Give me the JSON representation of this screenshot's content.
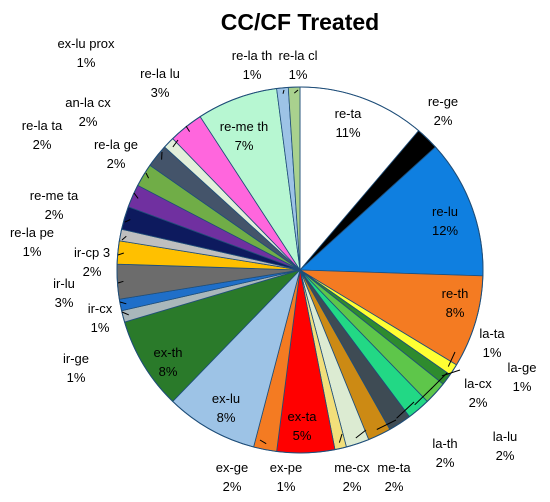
{
  "chart_data": {
    "type": "pie",
    "title": "CC/CF Treated",
    "unit": "%",
    "start_angle_deg": 0,
    "direction": "clockwise",
    "slices": [
      {
        "label": "re-ta",
        "value": 11,
        "color": "#ffffff",
        "text_color": "#000000"
      },
      {
        "label": "re-ge",
        "value": 2,
        "color": "#000000",
        "text_color": "#000000"
      },
      {
        "label": "re-lu",
        "value": 12,
        "color": "#0f7fe0",
        "text_color": "#000000"
      },
      {
        "label": "re-th",
        "value": 8,
        "color": "#f47b22",
        "text_color": "#000000"
      },
      {
        "label": "la-ta",
        "value": 1,
        "color": "#ffff33",
        "text_color": "#000000"
      },
      {
        "label": "la-ge",
        "value": 1,
        "color": "#2e8b2e",
        "text_color": "#000000"
      },
      {
        "label": "la-cx",
        "value": 2,
        "color": "#5ec64a",
        "text_color": "#000000"
      },
      {
        "label": "la-lu",
        "value": 2,
        "color": "#22d885",
        "text_color": "#000000"
      },
      {
        "label": "la-th",
        "value": 2,
        "color": "#3e4b54",
        "text_color": "#000000"
      },
      {
        "label": "me-ta",
        "value": 2,
        "color": "#cc8a14",
        "text_color": "#000000"
      },
      {
        "label": "me-cx",
        "value": 2,
        "color": "#dcebd2",
        "text_color": "#000000"
      },
      {
        "label": "ex-pe",
        "value": 1,
        "color": "#f2df7a",
        "text_color": "#000000"
      },
      {
        "label": "ex-ta",
        "value": 5,
        "color": "#ff0000",
        "text_color": "#000000"
      },
      {
        "label": "ex-ge",
        "value": 2,
        "color": "#f47b22",
        "text_color": "#000000"
      },
      {
        "label": "ex-lu",
        "value": 8,
        "color": "#9dc3e6",
        "text_color": "#000000"
      },
      {
        "label": "ex-th",
        "value": 8,
        "color": "#2a7a2a",
        "text_color": "#000000"
      },
      {
        "label": "ir-ge",
        "value": 1,
        "color": "#a9b7bb",
        "text_color": "#000000"
      },
      {
        "label": "ir-cx",
        "value": 1,
        "color": "#1f6fc9",
        "text_color": "#000000"
      },
      {
        "label": "ir-lu",
        "value": 3,
        "color": "#6c6c6c",
        "text_color": "#000000"
      },
      {
        "label": "ir-cp 3",
        "value": 2,
        "color": "#ffc000",
        "text_color": "#000000"
      },
      {
        "label": "re-la pe",
        "value": 1,
        "color": "#bfbfbf",
        "text_color": "#000000"
      },
      {
        "label": "re-me ta",
        "value": 2,
        "color": "#0d1a5e",
        "text_color": "#000000"
      },
      {
        "label": "re-la ge",
        "value": 2,
        "color": "#7030a0",
        "text_color": "#000000"
      },
      {
        "label": "re-la ta",
        "value": 2,
        "color": "#70ad47",
        "text_color": "#000000"
      },
      {
        "label": "an-la cx",
        "value": 2,
        "color": "#44546a",
        "text_color": "#000000"
      },
      {
        "label": "ex-lu prox",
        "value": 1,
        "color": "#e2efda",
        "text_color": "#000000"
      },
      {
        "label": "re-la lu",
        "value": 3,
        "color": "#ff66dd",
        "text_color": "#000000"
      },
      {
        "label": "re-me th",
        "value": 7,
        "color": "#b7f7d2",
        "text_color": "#000000"
      },
      {
        "label": "re-la th",
        "value": 1,
        "color": "#9dc3e6",
        "text_color": "#000000"
      },
      {
        "label": "re-la cl",
        "value": 1,
        "color": "#a9d18e",
        "text_color": "#000000"
      }
    ],
    "legend": "none",
    "labels": "slice name and percentage, inside large slices, outside with leader lines for small slices"
  }
}
